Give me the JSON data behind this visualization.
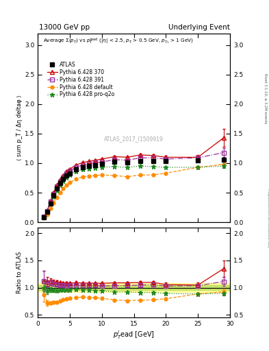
{
  "title_left": "13000 GeV pp",
  "title_right": "Underlying Event",
  "right_label_top": "Rivet 3.1.10, ≥ 3.2M events",
  "right_label_bot": "mcplots.cern.ch [arXiv:1306.3436]",
  "atlas_watermark": "ATLAS_2017_I1509919",
  "ylabel_main": "⟨ sum p_T / Δη deltaφ ⟩",
  "ylabel_ratio": "Ratio to ATLAS",
  "xlabel": "p$_T^l$ead [GeV]",
  "xlim": [
    0,
    30
  ],
  "ylim_main": [
    0,
    3.2
  ],
  "ylim_ratio": [
    0.45,
    2.1
  ],
  "yticks_main": [
    0,
    0.5,
    1.0,
    1.5,
    2.0,
    2.5,
    3.0
  ],
  "yticks_ratio": [
    0.5,
    1.0,
    1.5,
    2.0
  ],
  "xticks": [
    0,
    5,
    10,
    15,
    20,
    25,
    30
  ],
  "atlas_x": [
    1.0,
    1.5,
    2.0,
    2.5,
    3.0,
    3.5,
    4.0,
    4.5,
    5.0,
    6.0,
    7.0,
    8.0,
    9.0,
    10.0,
    12.0,
    14.0,
    16.0,
    18.0,
    20.0,
    25.0,
    29.0
  ],
  "atlas_y": [
    0.08,
    0.18,
    0.32,
    0.45,
    0.57,
    0.66,
    0.73,
    0.79,
    0.83,
    0.89,
    0.93,
    0.95,
    0.97,
    0.99,
    1.02,
    1.01,
    1.04,
    1.03,
    1.04,
    1.05,
    1.06
  ],
  "atlas_yerr": [
    0.01,
    0.01,
    0.01,
    0.01,
    0.01,
    0.01,
    0.01,
    0.01,
    0.01,
    0.01,
    0.01,
    0.01,
    0.01,
    0.01,
    0.01,
    0.01,
    0.01,
    0.02,
    0.02,
    0.02,
    0.03
  ],
  "py370_x": [
    1.0,
    1.5,
    2.0,
    2.5,
    3.0,
    3.5,
    4.0,
    4.5,
    5.0,
    6.0,
    7.0,
    8.0,
    9.0,
    10.0,
    12.0,
    14.0,
    16.0,
    18.0,
    20.0,
    25.0,
    29.0
  ],
  "py370_y": [
    0.09,
    0.2,
    0.36,
    0.5,
    0.63,
    0.72,
    0.79,
    0.86,
    0.9,
    0.97,
    1.01,
    1.03,
    1.05,
    1.07,
    1.11,
    1.1,
    1.14,
    1.13,
    1.1,
    1.1,
    1.43
  ],
  "py370_yerr": [
    0.01,
    0.01,
    0.01,
    0.01,
    0.01,
    0.01,
    0.01,
    0.01,
    0.01,
    0.01,
    0.01,
    0.01,
    0.01,
    0.01,
    0.02,
    0.02,
    0.02,
    0.02,
    0.03,
    0.04,
    0.15
  ],
  "py391_x": [
    1.0,
    1.5,
    2.0,
    2.5,
    3.0,
    3.5,
    4.0,
    4.5,
    5.0,
    6.0,
    7.0,
    8.0,
    9.0,
    10.0,
    12.0,
    14.0,
    16.0,
    18.0,
    20.0,
    25.0,
    29.0
  ],
  "py391_y": [
    0.09,
    0.19,
    0.35,
    0.48,
    0.6,
    0.69,
    0.76,
    0.82,
    0.87,
    0.93,
    0.97,
    0.99,
    1.01,
    1.02,
    1.06,
    1.05,
    1.09,
    1.09,
    1.07,
    1.09,
    1.18
  ],
  "py391_yerr": [
    0.01,
    0.01,
    0.01,
    0.01,
    0.01,
    0.01,
    0.01,
    0.01,
    0.01,
    0.01,
    0.01,
    0.01,
    0.01,
    0.01,
    0.02,
    0.02,
    0.02,
    0.02,
    0.02,
    0.03,
    0.08
  ],
  "pydef_x": [
    1.0,
    1.5,
    2.0,
    2.5,
    3.0,
    3.5,
    4.0,
    4.5,
    5.0,
    6.0,
    7.0,
    8.0,
    9.0,
    10.0,
    12.0,
    14.0,
    16.0,
    18.0,
    20.0,
    25.0,
    29.0
  ],
  "pydef_y": [
    0.07,
    0.13,
    0.23,
    0.33,
    0.42,
    0.5,
    0.57,
    0.63,
    0.67,
    0.73,
    0.77,
    0.78,
    0.79,
    0.8,
    0.79,
    0.77,
    0.8,
    0.8,
    0.83,
    0.93,
    0.98
  ],
  "pydef_yerr": [
    0.005,
    0.005,
    0.005,
    0.005,
    0.005,
    0.01,
    0.01,
    0.01,
    0.01,
    0.01,
    0.01,
    0.01,
    0.01,
    0.01,
    0.01,
    0.01,
    0.01,
    0.01,
    0.01,
    0.02,
    0.04
  ],
  "pyq2o_x": [
    1.0,
    1.5,
    2.0,
    2.5,
    3.0,
    3.5,
    4.0,
    4.5,
    5.0,
    6.0,
    7.0,
    8.0,
    9.0,
    10.0,
    12.0,
    14.0,
    16.0,
    18.0,
    20.0,
    25.0,
    29.0
  ],
  "pyq2o_y": [
    0.08,
    0.17,
    0.31,
    0.43,
    0.54,
    0.63,
    0.7,
    0.76,
    0.8,
    0.86,
    0.89,
    0.91,
    0.92,
    0.93,
    0.94,
    0.93,
    0.95,
    0.94,
    0.93,
    0.93,
    0.95
  ],
  "pyq2o_yerr": [
    0.005,
    0.005,
    0.01,
    0.01,
    0.01,
    0.01,
    0.01,
    0.01,
    0.01,
    0.01,
    0.01,
    0.01,
    0.01,
    0.01,
    0.01,
    0.01,
    0.01,
    0.01,
    0.01,
    0.02,
    0.03
  ],
  "color_atlas": "#000000",
  "color_py370": "#cc0000",
  "color_py391": "#993399",
  "color_pydef": "#ff8c00",
  "color_pyq2o": "#228822",
  "band_yellow": "#ffff99",
  "band_green": "#99cc44"
}
